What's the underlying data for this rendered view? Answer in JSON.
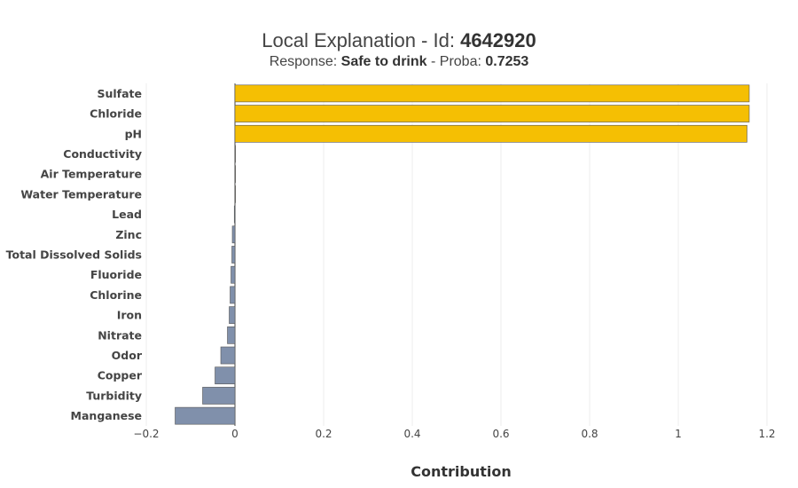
{
  "title": {
    "prefix": "Local Explanation - Id: ",
    "id": "4642920"
  },
  "subtitle": {
    "response_label": "Response: ",
    "response_value": "Safe to drink",
    "proba_label": " - Proba: ",
    "proba_value": "0.7253"
  },
  "colors": {
    "positive": "#f5bf03",
    "negative": "#8090ab",
    "grid": "#eeeeee"
  },
  "chart_data": {
    "type": "bar",
    "orientation": "horizontal",
    "xlabel": "Contribution",
    "xlim": [
      -0.2,
      1.2
    ],
    "xticks": [
      -0.2,
      0,
      0.2,
      0.4,
      0.6,
      0.8,
      1,
      1.2
    ],
    "xtick_labels": [
      "−0.2",
      "0",
      "0.2",
      "0.4",
      "0.6",
      "0.8",
      "1",
      "1.2"
    ],
    "categories": [
      "Sulfate",
      "Chloride",
      "pH",
      "Conductivity",
      "Air Temperature",
      "Water Temperature",
      "Lead",
      "Zinc",
      "Total Dissolved Solids",
      "Fluoride",
      "Chlorine",
      "Iron",
      "Nitrate",
      "Odor",
      "Copper",
      "Turbidity",
      "Manganese"
    ],
    "values": [
      1.16,
      1.16,
      1.155,
      0.001,
      0.0005,
      0.0003,
      -0.0015,
      -0.006,
      -0.007,
      -0.009,
      -0.011,
      -0.013,
      -0.017,
      -0.032,
      -0.045,
      -0.073,
      -0.135
    ],
    "grid": true
  }
}
